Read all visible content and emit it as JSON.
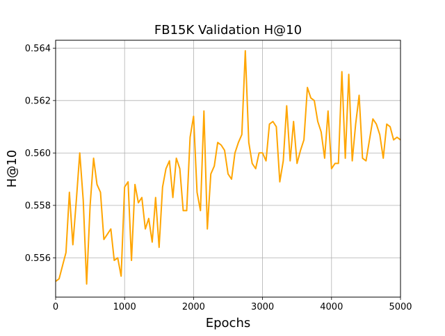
{
  "chart_data": {
    "type": "line",
    "title": "FB15K Validation H@10",
    "xlabel": "Epochs",
    "ylabel": "H@10",
    "xlim": [
      0,
      5000
    ],
    "ylim": [
      0.5545,
      0.5643
    ],
    "grid": true,
    "line_color": "#FFA500",
    "x_ticks": [
      0,
      1000,
      2000,
      3000,
      4000,
      5000
    ],
    "x_tick_labels": [
      "0",
      "1000",
      "2000",
      "3000",
      "4000",
      "5000"
    ],
    "y_ticks": [
      0.556,
      0.558,
      0.56,
      0.562,
      0.564
    ],
    "y_tick_labels": [
      "0.556",
      "0.558",
      "0.560",
      "0.562",
      "0.564"
    ],
    "series": [
      {
        "x": [
          0,
          50,
          100,
          150,
          200,
          250,
          300,
          350,
          400,
          450,
          500,
          550,
          600,
          650,
          700,
          750,
          800,
          850,
          900,
          950,
          1000,
          1050,
          1100,
          1150,
          1200,
          1250,
          1300,
          1350,
          1400,
          1450,
          1500,
          1550,
          1600,
          1650,
          1700,
          1750,
          1800,
          1850,
          1900,
          1950,
          2000,
          2050,
          2100,
          2150,
          2200,
          2250,
          2300,
          2350,
          2400,
          2450,
          2500,
          2550,
          2600,
          2650,
          2700,
          2750,
          2800,
          2850,
          2900,
          2950,
          3000,
          3050,
          3100,
          3150,
          3200,
          3250,
          3300,
          3350,
          3400,
          3450,
          3500,
          3550,
          3600,
          3650,
          3700,
          3750,
          3800,
          3850,
          3900,
          3950,
          4000,
          4050,
          4100,
          4150,
          4200,
          4250,
          4300,
          4350,
          4400,
          4450,
          4500,
          4550,
          4600,
          4650,
          4700,
          4750,
          4800,
          4850,
          4900,
          4950,
          5000
        ],
        "y": [
          0.5551,
          0.5552,
          0.5557,
          0.5562,
          0.5585,
          0.5565,
          0.5582,
          0.56,
          0.5582,
          0.555,
          0.558,
          0.5598,
          0.5588,
          0.5585,
          0.5567,
          0.5569,
          0.5571,
          0.5559,
          0.556,
          0.5553,
          0.5587,
          0.5589,
          0.5559,
          0.5588,
          0.5581,
          0.5583,
          0.5571,
          0.5575,
          0.5566,
          0.5583,
          0.5564,
          0.5587,
          0.5594,
          0.5597,
          0.5583,
          0.5598,
          0.5594,
          0.5578,
          0.5578,
          0.5606,
          0.5614,
          0.5585,
          0.5578,
          0.5616,
          0.5571,
          0.5592,
          0.5595,
          0.5604,
          0.5603,
          0.5601,
          0.5592,
          0.559,
          0.56,
          0.5604,
          0.5607,
          0.5639,
          0.5604,
          0.5596,
          0.5594,
          0.56,
          0.56,
          0.5597,
          0.5611,
          0.5612,
          0.561,
          0.5589,
          0.5597,
          0.5618,
          0.5597,
          0.5612,
          0.5596,
          0.5601,
          0.5605,
          0.5625,
          0.5621,
          0.562,
          0.5612,
          0.5608,
          0.5598,
          0.5616,
          0.5594,
          0.5596,
          0.5596,
          0.5631,
          0.5598,
          0.563,
          0.5597,
          0.5611,
          0.5622,
          0.5598,
          0.5597,
          0.5605,
          0.5613,
          0.5611,
          0.5607,
          0.5598,
          0.5611,
          0.561,
          0.5605,
          0.5606,
          0.5605
        ]
      }
    ]
  }
}
